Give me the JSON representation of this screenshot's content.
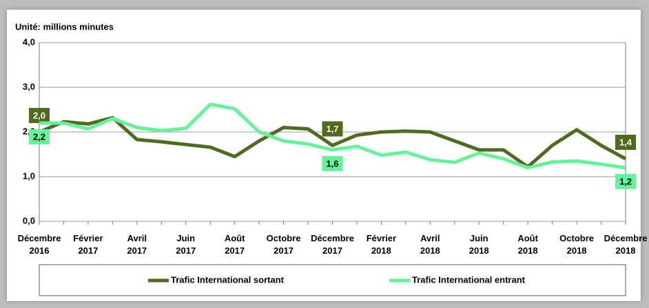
{
  "chart_data": {
    "type": "line",
    "title": "Unité: millions minutes",
    "categories": [
      "Décembre 2016",
      null,
      "Février 2017",
      null,
      "Avril 2017",
      null,
      "Juin 2017",
      null,
      "Août 2017",
      null,
      "Octobre 2017",
      null,
      "Décembre 2017",
      null,
      "Février 2018",
      null,
      "Avril 2018",
      null,
      "Juin 2018",
      null,
      "Août 2018",
      null,
      "Octobre 2018",
      null,
      "Décembre 2018"
    ],
    "series": [
      {
        "name": "Trafic International sortant",
        "color": "#4f6b1e",
        "values": [
          2.0,
          2.23,
          2.18,
          2.32,
          1.83,
          1.78,
          1.72,
          1.66,
          1.45,
          1.8,
          2.1,
          2.07,
          1.7,
          1.93,
          2.0,
          2.02,
          2.0,
          1.8,
          1.6,
          1.6,
          1.22,
          1.7,
          2.05,
          1.7,
          1.4
        ],
        "value_labels": [
          "2,0",
          null,
          null,
          null,
          null,
          null,
          null,
          null,
          null,
          null,
          null,
          null,
          "1,7",
          null,
          null,
          null,
          null,
          null,
          null,
          null,
          null,
          null,
          null,
          null,
          "1,4"
        ]
      },
      {
        "name": "Trafic International entrant",
        "color": "#66f29a",
        "values": [
          2.2,
          2.2,
          2.07,
          2.3,
          2.1,
          2.03,
          2.08,
          2.62,
          2.52,
          2.0,
          1.8,
          1.73,
          1.6,
          1.68,
          1.48,
          1.55,
          1.38,
          1.32,
          1.53,
          1.4,
          1.2,
          1.33,
          1.35,
          1.28,
          1.2
        ],
        "value_labels": [
          "2,2",
          null,
          null,
          null,
          null,
          null,
          null,
          null,
          null,
          null,
          null,
          null,
          "1,6",
          null,
          null,
          null,
          null,
          null,
          null,
          null,
          null,
          null,
          null,
          null,
          "1,2"
        ]
      }
    ],
    "ylim": [
      0,
      4
    ],
    "yticks": [
      {
        "value": 0,
        "label": "0,0"
      },
      {
        "value": 1,
        "label": "1,0"
      },
      {
        "value": 2,
        "label": "2,0"
      },
      {
        "value": 3,
        "label": "3,0"
      },
      {
        "value": 4,
        "label": "4,0"
      }
    ],
    "grid": true
  }
}
